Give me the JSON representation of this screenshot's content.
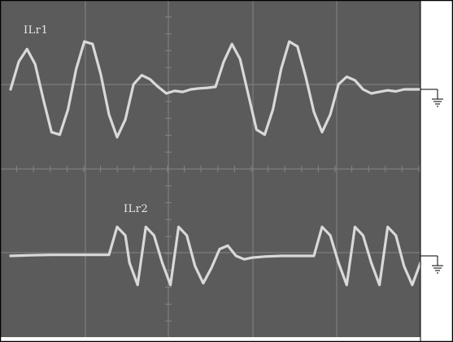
{
  "chart_data": {
    "type": "line",
    "instrument": "oscilloscope",
    "grid": {
      "visible": true,
      "major_divisions_x": 5,
      "major_divisions_y": 4,
      "minor_ticks_per_division": 5
    },
    "colors": {
      "screen": "#5b5b5b",
      "grid": "#858585",
      "trace": "#d9d9d9",
      "frame": "#000000"
    },
    "series": [
      {
        "name": "ILr1",
        "ground_marker": "ground-symbol",
        "x": [
          0,
          0.02,
          0.04,
          0.06,
          0.08,
          0.1,
          0.12,
          0.14,
          0.16,
          0.18,
          0.2,
          0.22,
          0.24,
          0.26,
          0.28,
          0.3,
          0.32,
          0.34,
          0.36,
          0.38,
          0.4,
          0.42,
          0.44,
          0.46,
          0.48,
          0.5,
          0.52,
          0.54,
          0.56,
          0.58,
          0.6,
          0.62,
          0.64,
          0.66,
          0.68,
          0.7,
          0.72,
          0.74,
          0.76,
          0.78,
          0.8,
          0.82,
          0.84,
          0.86,
          0.88,
          0.9,
          0.92,
          0.94,
          0.96,
          0.98,
          1.0
        ],
        "y": [
          0,
          0.55,
          0.8,
          0.5,
          -0.2,
          -0.85,
          -0.9,
          -0.4,
          0.4,
          0.95,
          0.9,
          0.3,
          -0.5,
          -0.95,
          -0.6,
          0.1,
          0.28,
          0.2,
          0.05,
          -0.08,
          -0.03,
          -0.05,
          0.0,
          0.02,
          0.03,
          0.05,
          0.55,
          0.9,
          0.6,
          -0.1,
          -0.8,
          -0.9,
          -0.4,
          0.4,
          0.95,
          0.85,
          0.25,
          -0.45,
          -0.85,
          -0.5,
          0.1,
          0.25,
          0.18,
          0.0,
          -0.08,
          -0.05,
          -0.02,
          -0.04,
          0.0,
          0.0,
          0.0
        ]
      },
      {
        "name": "ILr2",
        "ground_marker": "ground-symbol",
        "x": [
          0,
          0.05,
          0.1,
          0.15,
          0.2,
          0.24,
          0.26,
          0.28,
          0.29,
          0.31,
          0.33,
          0.35,
          0.37,
          0.39,
          0.41,
          0.43,
          0.45,
          0.47,
          0.49,
          0.51,
          0.53,
          0.55,
          0.57,
          0.59,
          0.62,
          0.66,
          0.7,
          0.74,
          0.76,
          0.78,
          0.8,
          0.82,
          0.84,
          0.86,
          0.88,
          0.9,
          0.92,
          0.94,
          0.96,
          0.98,
          1.0
        ],
        "y": [
          0,
          0.02,
          0.03,
          0.03,
          0.03,
          0.03,
          0.85,
          0.6,
          -0.2,
          -0.85,
          0.85,
          0.6,
          -0.2,
          -0.85,
          0.85,
          0.6,
          -0.3,
          -0.8,
          -0.35,
          0.2,
          0.3,
          0.0,
          -0.1,
          -0.05,
          -0.02,
          0.0,
          0.0,
          0.0,
          0.85,
          0.6,
          -0.2,
          -0.85,
          0.85,
          0.6,
          -0.2,
          -0.85,
          0.85,
          0.6,
          -0.3,
          -0.85,
          -0.2
        ]
      }
    ]
  }
}
